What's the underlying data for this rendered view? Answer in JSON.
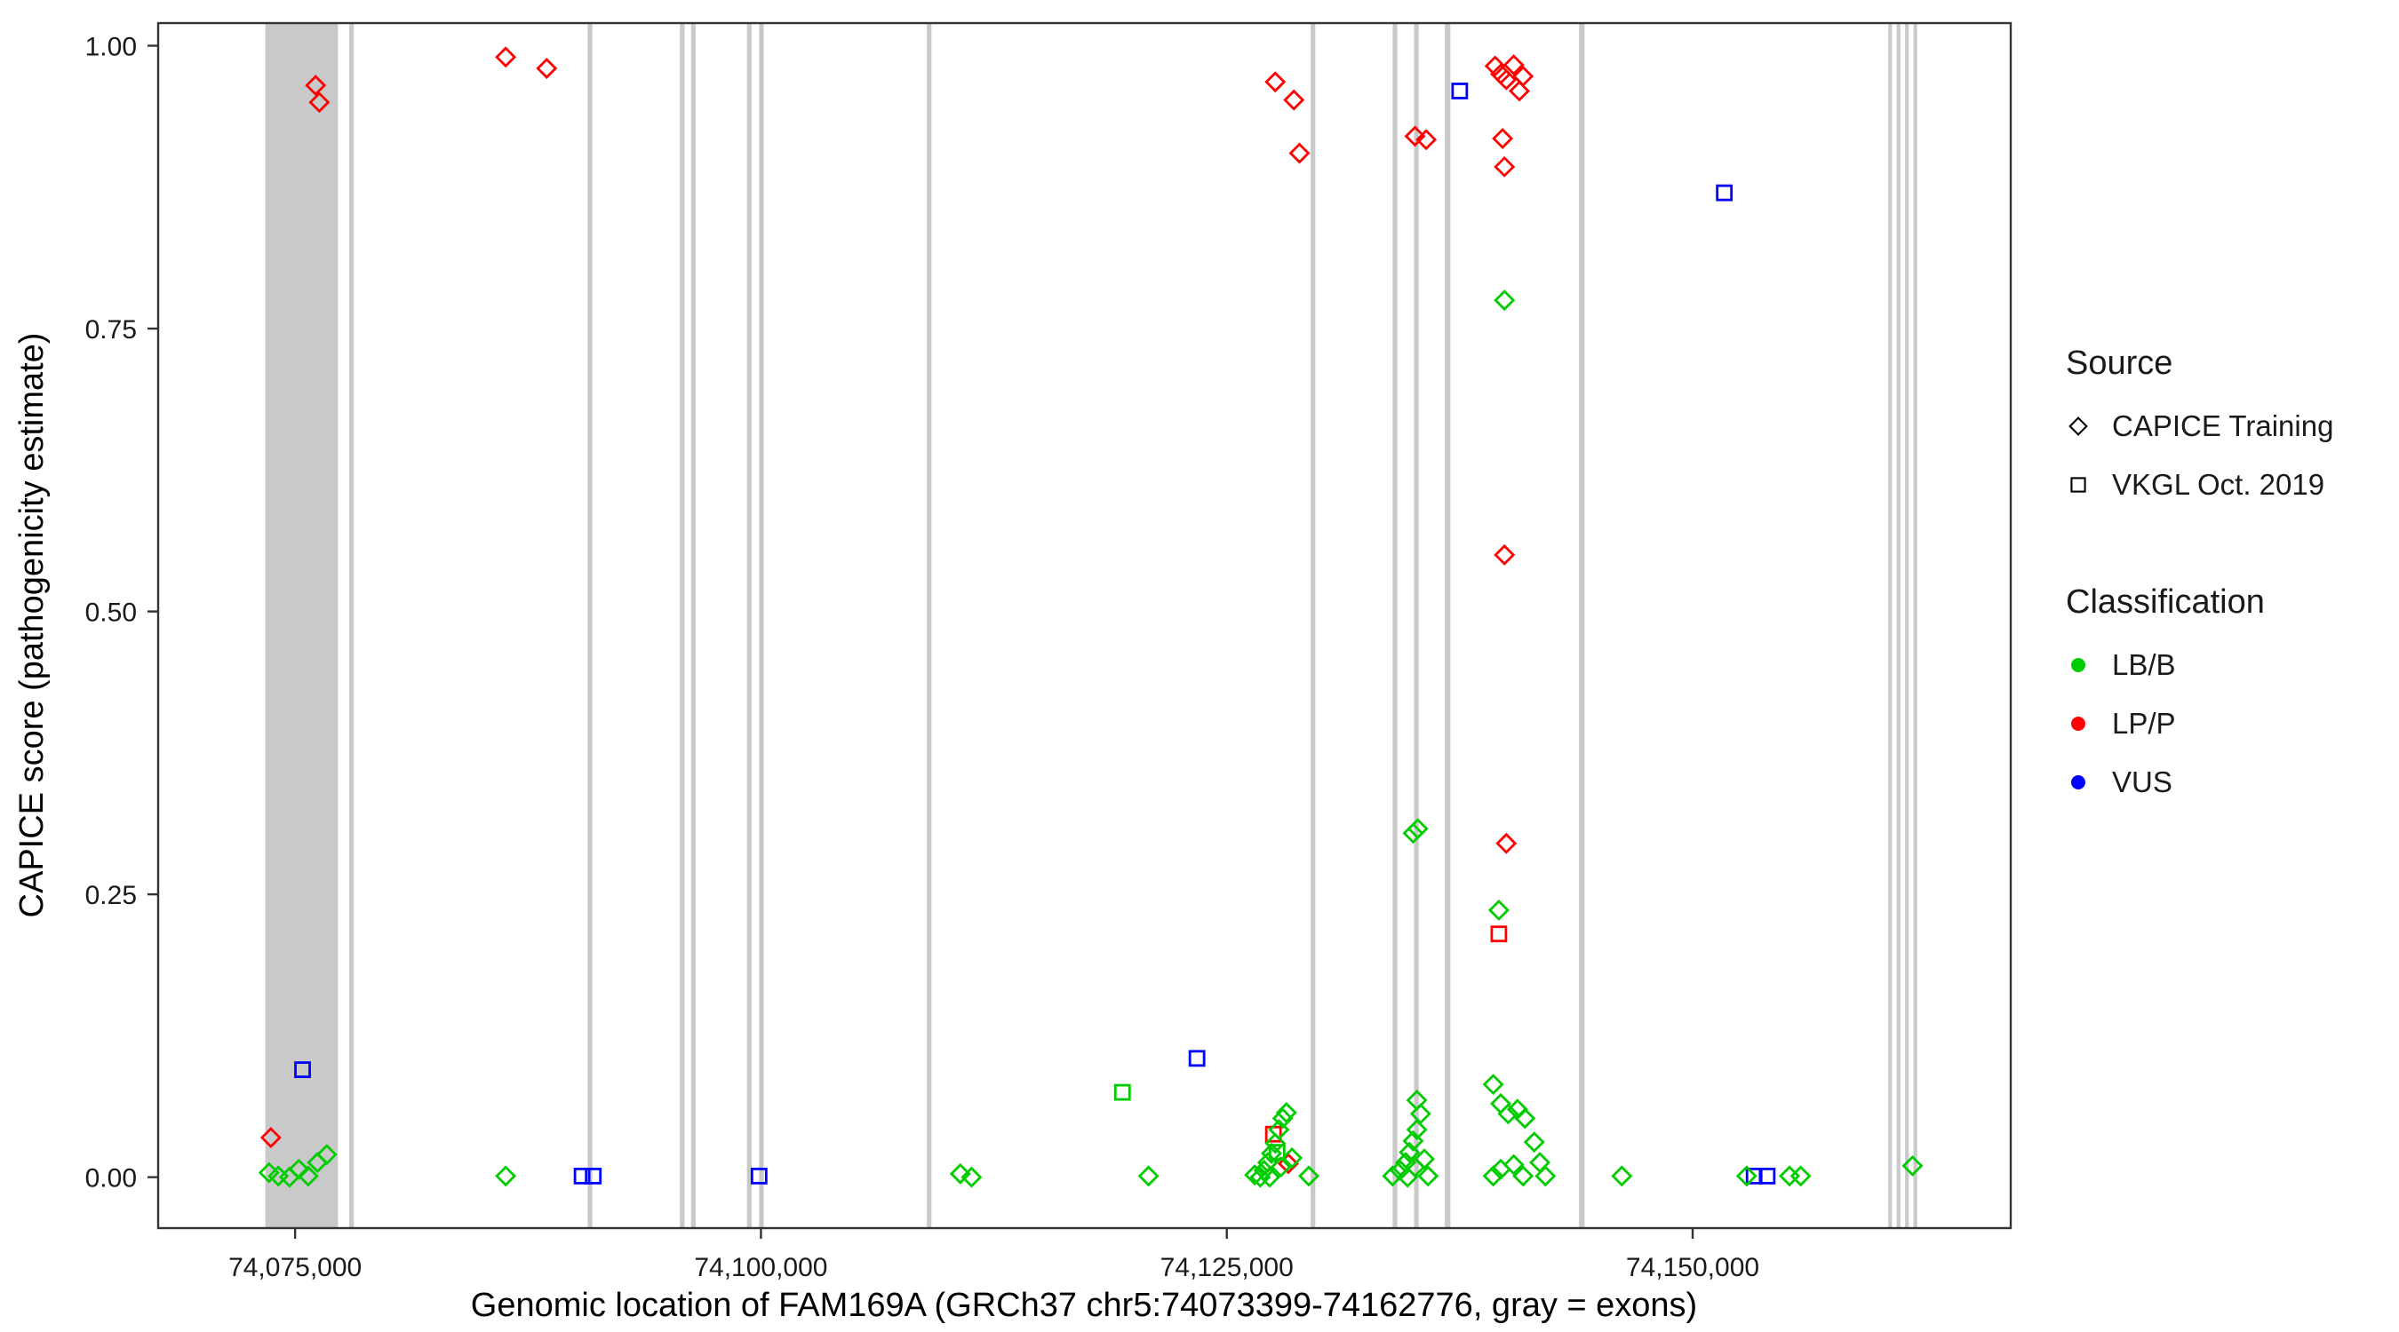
{
  "legend": {
    "source": {
      "title": "Source",
      "items": [
        {
          "label": "CAPICE Training",
          "marker": "diamond"
        },
        {
          "label": "VKGL Oct. 2019",
          "marker": "square"
        }
      ]
    },
    "classification": {
      "title": "Classification",
      "items": [
        {
          "label": "LB/B",
          "color": "#00CC00"
        },
        {
          "label": "LP/P",
          "color": "#FF0000"
        },
        {
          "label": "VUS",
          "color": "#0000FF"
        }
      ]
    }
  },
  "chart_data": {
    "type": "scatter",
    "title": "",
    "xlabel": "Genomic location of FAM169A (GRCh37 chr5:74073399-74162776, gray = exons)",
    "ylabel": "CAPICE score (pathogenicity estimate)",
    "x_domain": [
      74067650,
      74167070
    ],
    "y_domain": [
      -0.045,
      1.02
    ],
    "x_ticks": [
      {
        "v": 74075000,
        "label": "74,075,000"
      },
      {
        "v": 74100000,
        "label": "74,100,000"
      },
      {
        "v": 74125000,
        "label": "74,125,000"
      },
      {
        "v": 74150000,
        "label": "74,150,000"
      }
    ],
    "y_ticks": [
      {
        "v": 0.0,
        "label": "0.00"
      },
      {
        "v": 0.25,
        "label": "0.25"
      },
      {
        "v": 0.5,
        "label": "0.50"
      },
      {
        "v": 0.75,
        "label": "0.75"
      },
      {
        "v": 1.0,
        "label": "1.00"
      }
    ],
    "exon_color": "#C9C9C9",
    "panel_border_color": "#333333",
    "exons": [
      [
        74073399,
        74077300
      ],
      [
        74077900,
        74078150
      ],
      [
        74090700,
        74090950
      ],
      [
        74095650,
        74095900
      ],
      [
        74096250,
        74096500
      ],
      [
        74099250,
        74099500
      ],
      [
        74099900,
        74100150
      ],
      [
        74108900,
        74109150
      ],
      [
        74129500,
        74129750
      ],
      [
        74133900,
        74134150
      ],
      [
        74135050,
        74135300
      ],
      [
        74136700,
        74137000
      ],
      [
        74143900,
        74144200
      ],
      [
        74160500,
        74160700
      ],
      [
        74160950,
        74161150
      ],
      [
        74161400,
        74161600
      ],
      [
        74161850,
        74162050
      ]
    ],
    "series": [
      {
        "classification": "LP/P",
        "source": "CAPICE Training",
        "marker": "diamond",
        "color": "#FF0000",
        "points": [
          [
            74073700,
            0.035
          ],
          [
            74076100,
            0.965
          ],
          [
            74076300,
            0.95
          ],
          [
            74086300,
            0.99
          ],
          [
            74088500,
            0.98
          ],
          [
            74127600,
            0.968
          ],
          [
            74128600,
            0.952
          ],
          [
            74128900,
            0.905
          ],
          [
            74135100,
            0.92
          ],
          [
            74135700,
            0.917
          ],
          [
            74139400,
            0.982
          ],
          [
            74139700,
            0.975
          ],
          [
            74140000,
            0.97
          ],
          [
            74140400,
            0.983
          ],
          [
            74140700,
            0.96
          ],
          [
            74140900,
            0.973
          ],
          [
            74139800,
            0.918
          ],
          [
            74139900,
            0.893
          ],
          [
            74139900,
            0.55
          ],
          [
            74140000,
            0.295
          ],
          [
            74128300,
            0.012
          ]
        ]
      },
      {
        "classification": "LP/P",
        "source": "VKGL Oct. 2019",
        "marker": "square",
        "color": "#FF0000",
        "points": [
          [
            74127500,
            0.038
          ],
          [
            74139600,
            0.215
          ]
        ]
      },
      {
        "classification": "VUS",
        "source": "VKGL Oct. 2019",
        "marker": "square",
        "color": "#0000FF",
        "points": [
          [
            74075400,
            0.095
          ],
          [
            74090400,
            0.001
          ],
          [
            74091000,
            0.001
          ],
          [
            74099900,
            0.001
          ],
          [
            74123400,
            0.105
          ],
          [
            74137500,
            0.96
          ],
          [
            74151700,
            0.87
          ],
          [
            74153300,
            0.001
          ],
          [
            74154000,
            0.001
          ]
        ]
      },
      {
        "classification": "LB/B",
        "source": "VKGL Oct. 2019",
        "marker": "square",
        "color": "#00CC00",
        "points": [
          [
            74119400,
            0.075
          ],
          [
            74127700,
            0.022
          ]
        ]
      },
      {
        "classification": "LB/B",
        "source": "CAPICE Training",
        "marker": "diamond",
        "color": "#00CC00",
        "points": [
          [
            74073600,
            0.004
          ],
          [
            74074100,
            0.001
          ],
          [
            74074700,
            0.0
          ],
          [
            74075200,
            0.007
          ],
          [
            74075700,
            0.001
          ],
          [
            74076200,
            0.013
          ],
          [
            74076700,
            0.02
          ],
          [
            74086300,
            0.001
          ],
          [
            74110700,
            0.003
          ],
          [
            74111300,
            0.0
          ],
          [
            74120800,
            0.001
          ],
          [
            74126500,
            0.002
          ],
          [
            74126800,
            0.0
          ],
          [
            74127000,
            0.006
          ],
          [
            74127200,
            0.013
          ],
          [
            74127400,
            0.021
          ],
          [
            74127600,
            0.03
          ],
          [
            74127800,
            0.042
          ],
          [
            74128000,
            0.052
          ],
          [
            74128200,
            0.057
          ],
          [
            74127300,
            0.0
          ],
          [
            74127900,
            0.009
          ],
          [
            74128500,
            0.017
          ],
          [
            74129400,
            0.001
          ],
          [
            74133900,
            0.001
          ],
          [
            74134300,
            0.006
          ],
          [
            74134600,
            0.013
          ],
          [
            74134800,
            0.022
          ],
          [
            74135000,
            0.032
          ],
          [
            74135200,
            0.042
          ],
          [
            74135400,
            0.056
          ],
          [
            74135200,
            0.068
          ],
          [
            74134700,
            0.0
          ],
          [
            74135100,
            0.009
          ],
          [
            74135600,
            0.016
          ],
          [
            74135800,
            0.001
          ],
          [
            74135000,
            0.304
          ],
          [
            74135250,
            0.308
          ],
          [
            74139300,
            0.082
          ],
          [
            74139700,
            0.065
          ],
          [
            74140100,
            0.056
          ],
          [
            74140600,
            0.06
          ],
          [
            74141000,
            0.052
          ],
          [
            74139600,
            0.236
          ],
          [
            74139900,
            0.775
          ],
          [
            74139300,
            0.001
          ],
          [
            74139700,
            0.007
          ],
          [
            74140400,
            0.011
          ],
          [
            74140900,
            0.001
          ],
          [
            74141500,
            0.031
          ],
          [
            74141800,
            0.013
          ],
          [
            74142100,
            0.001
          ],
          [
            74146200,
            0.001
          ],
          [
            74152900,
            0.001
          ],
          [
            74155200,
            0.001
          ],
          [
            74155800,
            0.001
          ],
          [
            74161800,
            0.01
          ]
        ]
      }
    ]
  }
}
